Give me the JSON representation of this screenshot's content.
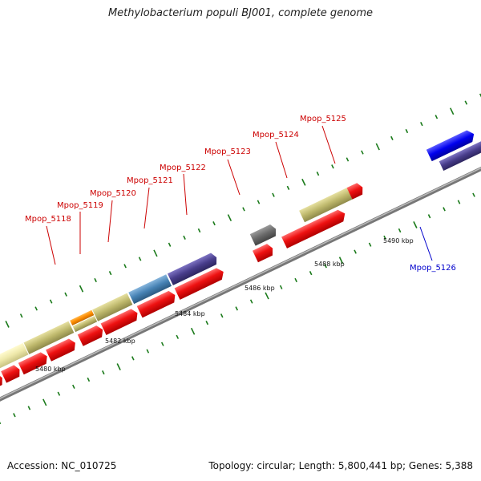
{
  "title": "Methylobacterium populi BJ001, complete genome",
  "footer": {
    "accession": "Accession: NC_010725",
    "summary": "Topology: circular; Length: 5,800,441 bp; Genes: 5,388"
  },
  "scale_labels": [
    "5480 kbp",
    "5482 kbp",
    "5484 kbp",
    "5486 kbp",
    "5488 kbp",
    "5490 kbp"
  ],
  "gene_labels": [
    {
      "text": "Mpop_5118",
      "color": "#cc0000"
    },
    {
      "text": "Mpop_5119",
      "color": "#cc0000"
    },
    {
      "text": "Mpop_5120",
      "color": "#cc0000"
    },
    {
      "text": "Mpop_5121",
      "color": "#cc0000"
    },
    {
      "text": "Mpop_5122",
      "color": "#cc0000"
    },
    {
      "text": "Mpop_5123",
      "color": "#cc0000"
    },
    {
      "text": "Mpop_5124",
      "color": "#cc0000"
    },
    {
      "text": "Mpop_5125",
      "color": "#cc0000"
    },
    {
      "text": "Mpop_5126",
      "color": "#0000cc"
    }
  ],
  "colors": {
    "cds": "#ee1111",
    "backbone": "#888888",
    "tick": "#1a7a1a",
    "khaki": "#bdb76b",
    "pale_yellow": "#eee8aa",
    "orange": "#ff8c00",
    "steel_blue": "#4682b4",
    "dark_slate_blue": "#483d8b",
    "dim_gray": "#696969",
    "blue": "#0000ee",
    "spring_green": "#00e08a"
  }
}
